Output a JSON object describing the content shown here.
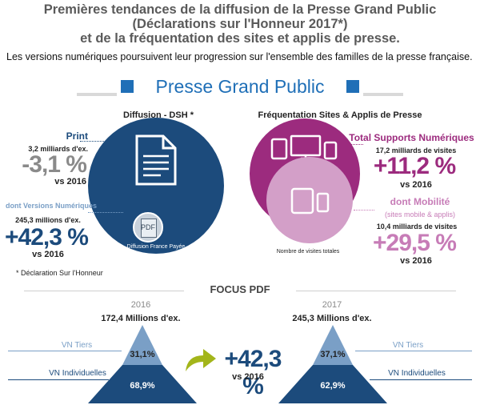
{
  "title": {
    "line1": "Premières tendances de la diffusion de la Presse Grand Public",
    "line2": "(Déclarations sur l'Honneur 2017*)",
    "line3": "et de la fréquentation des sites et applis de presse."
  },
  "intro": "Les versions numériques poursuivent leur progression sur l'ensemble des familles de la presse française.",
  "banner": "Presse Grand Public",
  "diffusion": {
    "heading": "Diffusion - DSH *",
    "print_label": "Print",
    "print_count": "3,2 milliards d'ex.",
    "print_change": "-3,1 %",
    "print_vs": "vs 2016",
    "vn_label": "dont Versions Numériques",
    "vn_count": "245,3 millions d'ex.",
    "vn_change": "+42,3 %",
    "vn_vs": "vs 2016",
    "circle_caption": "Diffusion France Payée",
    "pdf_icon_text": "PDF",
    "footnote": "* Déclaration Sur l'Honneur"
  },
  "frequentation": {
    "heading": "Fréquentation Sites & Applis de Presse",
    "total_label": "Total Supports Numériques",
    "total_count": "17,2 milliards de visites",
    "total_change": "+11,2 %",
    "total_vs": "vs 2016",
    "mobile_label": "dont Mobilité",
    "mobile_sub": "(sites mobile & applis)",
    "mobile_count": "10,4 milliards de visites",
    "mobile_change": "+29,5 %",
    "mobile_vs": "vs 2016",
    "circle_caption": "Nombre de visites totales"
  },
  "focus": {
    "heading": "FOCUS PDF",
    "year_2016": "2016",
    "year_2017": "2017",
    "total_2016": "172,4 Millions d'ex.",
    "total_2017": "245,3 Millions d'ex.",
    "vn_tiers_label": "VN Tiers",
    "vn_indiv_label": "VN Individuelles",
    "tiers_2016": "31,1%",
    "indiv_2016": "68,9%",
    "tiers_2017": "37,1%",
    "indiv_2017": "62,9%",
    "growth": "+42,3 %",
    "growth_vs": "vs 2016"
  },
  "colors": {
    "navy": "#1c4b7c",
    "blue_accent": "#1f6fb7",
    "purple": "#9c2b7e",
    "pink": "#c77cb7",
    "light_blue": "#7a9fc6",
    "arrow_green": "#a3b51a"
  }
}
